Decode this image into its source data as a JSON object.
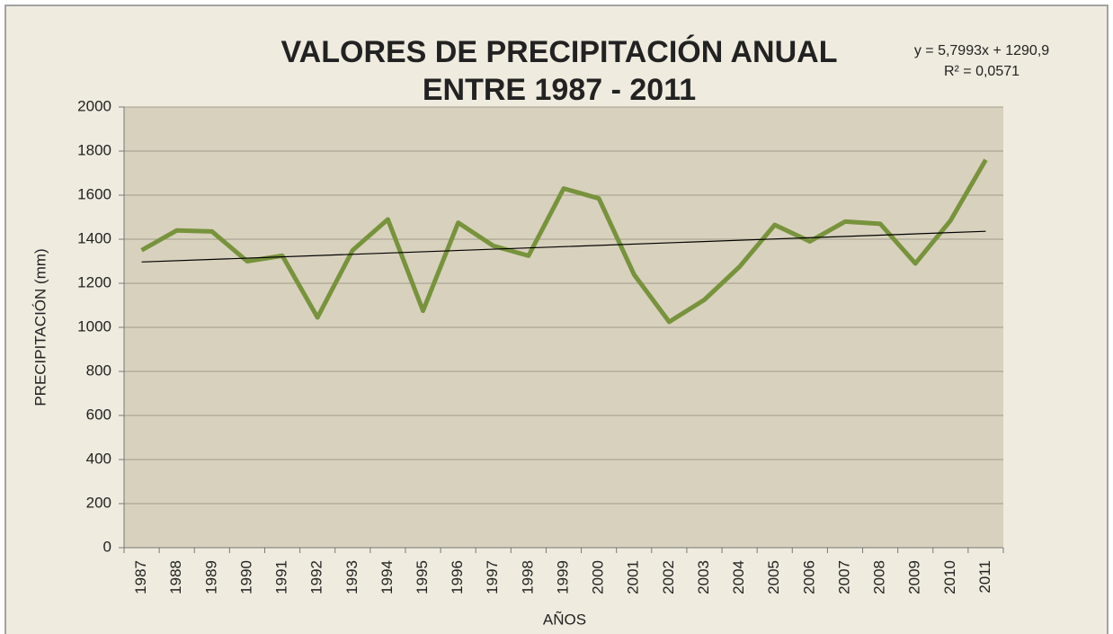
{
  "chart_data": {
    "type": "line",
    "title": [
      "VALORES DE PRECIPITACIÓN ANUAL",
      "ENTRE 1987 - 2011"
    ],
    "annotations": [
      "y = 5,7993x  + 1290,9",
      "R² = 0,0571"
    ],
    "trendline": {
      "slope": 5.7993,
      "intercept": 1290.9
    },
    "x_label": "AÑOS",
    "y_label": "PRECIPITACIÓN (mm)",
    "categories": [
      "1987",
      "1988",
      "1989",
      "1990",
      "1991",
      "1992",
      "1993",
      "1994",
      "1995",
      "1996",
      "1997",
      "1998",
      "1999",
      "2000",
      "2001",
      "2002",
      "2003",
      "2004",
      "2005",
      "2006",
      "2007",
      "2008",
      "2009",
      "2010",
      "2011"
    ],
    "series": [
      {
        "name": "Precipitación",
        "color": "#77933c",
        "values": [
          1350,
          1440,
          1435,
          1300,
          1325,
          1045,
          1350,
          1490,
          1075,
          1475,
          1370,
          1325,
          1630,
          1585,
          1240,
          1025,
          1125,
          1275,
          1465,
          1390,
          1480,
          1470,
          1290,
          1485,
          1760
        ]
      }
    ],
    "ylim": [
      0,
      2000
    ],
    "yticks": [
      0,
      200,
      400,
      600,
      800,
      1000,
      1200,
      1400,
      1600,
      1800,
      2000
    ],
    "grid": true
  }
}
